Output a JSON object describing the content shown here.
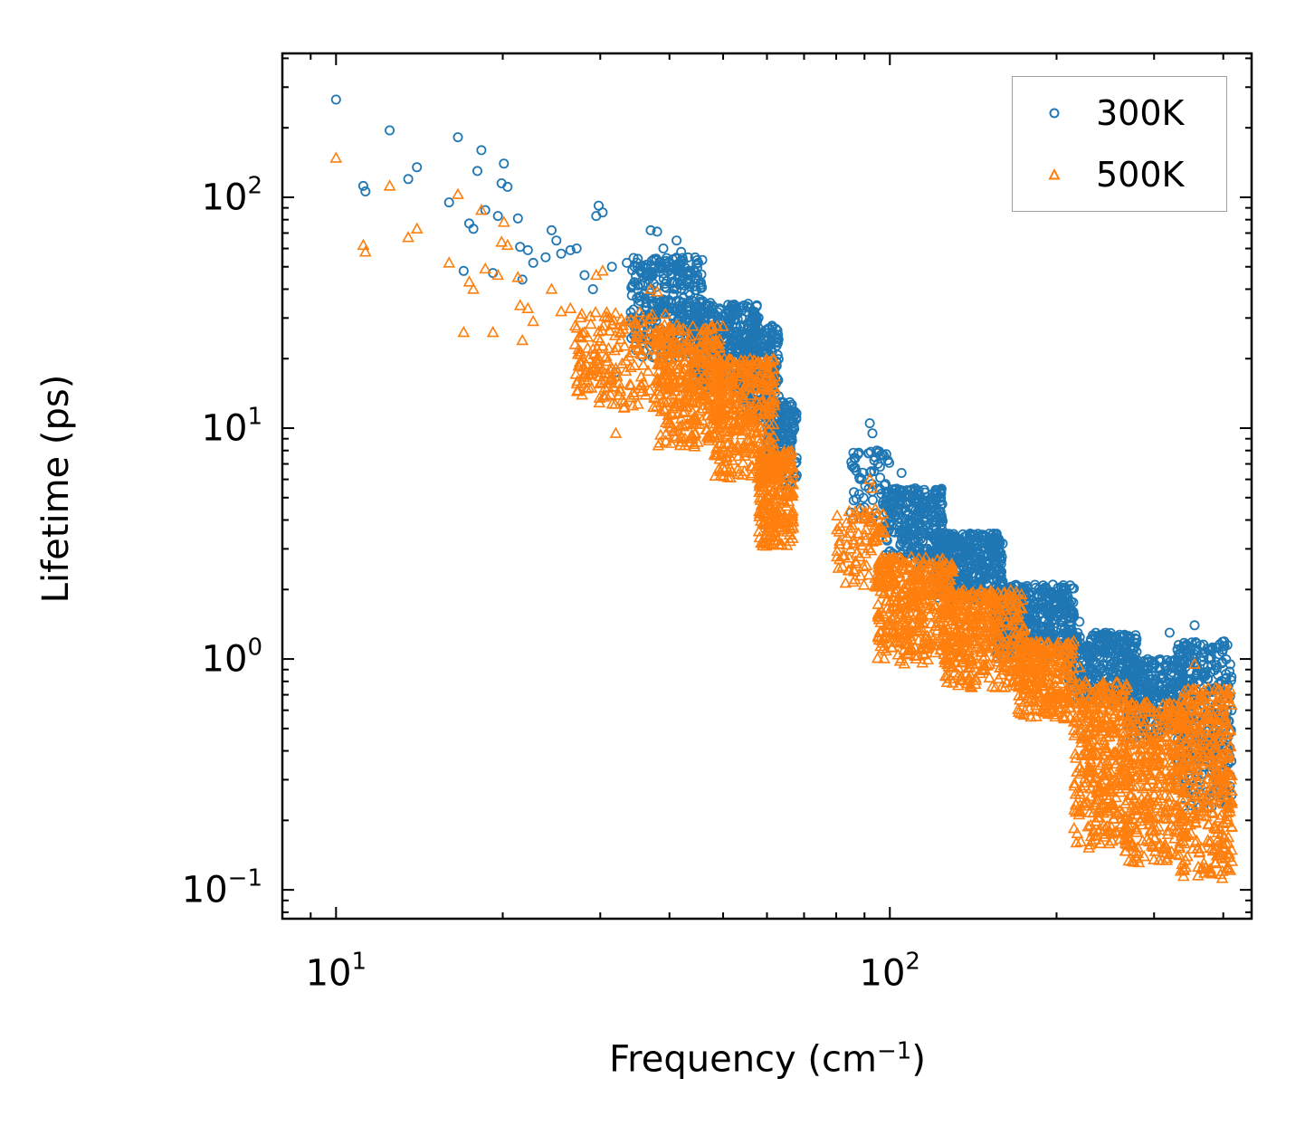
{
  "chart_data": {
    "type": "scatter",
    "title": "",
    "xlabel": "Frequency (cm",
    "xlabel_sup": "−1",
    "xlabel_suffix": ")",
    "ylabel": "Lifetime (ps)",
    "xscale": "log",
    "yscale": "log",
    "xlim": [
      8,
      450
    ],
    "ylim": [
      0.075,
      420
    ],
    "x_ticks": [
      {
        "base": "10",
        "exp": "1",
        "value": 10
      },
      {
        "base": "10",
        "exp": "2",
        "value": 100
      }
    ],
    "y_ticks": [
      {
        "base": "10",
        "exp": "−1",
        "value": 0.1
      },
      {
        "base": "10",
        "exp": "0",
        "value": 1
      },
      {
        "base": "10",
        "exp": "1",
        "value": 10
      },
      {
        "base": "10",
        "exp": "2",
        "value": 100
      }
    ],
    "legend_position": "top-right",
    "series": [
      {
        "name": "300K",
        "marker": "circle",
        "color": "#1f77b4",
        "points": [
          [
            10.0,
            265
          ],
          [
            11.2,
            112
          ],
          [
            11.3,
            106
          ],
          [
            12.5,
            195
          ],
          [
            13.5,
            120
          ],
          [
            14.0,
            135
          ],
          [
            16.0,
            95
          ],
          [
            16.6,
            182
          ],
          [
            17.0,
            48
          ],
          [
            17.4,
            77
          ],
          [
            17.7,
            73
          ],
          [
            18.0,
            130
          ],
          [
            18.3,
            160
          ],
          [
            18.6,
            88
          ],
          [
            19.2,
            47
          ],
          [
            19.6,
            83
          ],
          [
            19.9,
            115
          ],
          [
            20.1,
            140
          ],
          [
            20.4,
            111
          ],
          [
            21.3,
            81
          ],
          [
            21.5,
            61
          ],
          [
            21.7,
            44
          ],
          [
            22.2,
            59
          ],
          [
            22.7,
            52
          ],
          [
            23.9,
            55
          ],
          [
            24.5,
            72
          ],
          [
            25.0,
            65
          ],
          [
            25.5,
            57
          ],
          [
            26.5,
            59
          ],
          [
            27.2,
            60
          ],
          [
            28.1,
            46
          ],
          [
            29.1,
            40
          ],
          [
            29.5,
            83
          ],
          [
            29.8,
            92
          ],
          [
            30.3,
            86
          ],
          [
            31.5,
            50
          ],
          [
            32.0,
            17.5
          ],
          [
            33.5,
            52
          ],
          [
            34.6,
            50
          ],
          [
            36.0,
            45
          ],
          [
            37.0,
            72
          ],
          [
            38.0,
            71
          ],
          [
            39.0,
            60
          ],
          [
            41.2,
            65
          ],
          [
            42.0,
            58
          ],
          [
            92.0,
            10.5
          ],
          [
            93.0,
            9.5
          ],
          [
            95.0,
            7.8
          ],
          [
            96.0,
            6.8
          ],
          [
            105.0,
            6.4
          ],
          [
            110.0,
            5.1
          ],
          [
            220.0,
            1.45
          ],
          [
            260.0,
            1.25
          ],
          [
            320.0,
            1.3
          ],
          [
            355.0,
            1.4
          ],
          [
            380.0,
            1.1
          ]
        ],
        "bands": [
          {
            "x": [
              34,
              46
            ],
            "y_lo": 20,
            "y_hi": 55,
            "n": 320
          },
          {
            "x": [
              44,
              58
            ],
            "y_lo": 15,
            "y_hi": 35,
            "n": 360
          },
          {
            "x": [
              54,
              63
            ],
            "y_lo": 11,
            "y_hi": 28,
            "n": 220
          },
          {
            "x": [
              60,
              68
            ],
            "y_lo": 5.5,
            "y_hi": 13,
            "n": 160
          },
          {
            "x": [
              85,
              100
            ],
            "y_lo": 4.0,
            "y_hi": 8.0,
            "n": 60
          },
          {
            "x": [
              98,
              125
            ],
            "y_lo": 2.5,
            "y_hi": 5.5,
            "n": 300
          },
          {
            "x": [
              120,
              160
            ],
            "y_lo": 1.8,
            "y_hi": 3.5,
            "n": 420
          },
          {
            "x": [
              155,
              215
            ],
            "y_lo": 1.0,
            "y_hi": 2.1,
            "n": 460
          },
          {
            "x": [
              210,
              280
            ],
            "y_lo": 0.65,
            "y_hi": 1.3,
            "n": 340
          },
          {
            "x": [
              270,
              340
            ],
            "y_lo": 0.45,
            "y_hi": 1.0,
            "n": 280
          },
          {
            "x": [
              330,
              415
            ],
            "y_lo": 0.22,
            "y_hi": 1.2,
            "n": 320
          }
        ]
      },
      {
        "name": "500K",
        "marker": "triangle",
        "color": "#ff7f0e",
        "points": [
          [
            10.0,
            148
          ],
          [
            11.2,
            62
          ],
          [
            11.3,
            58
          ],
          [
            12.5,
            112
          ],
          [
            13.5,
            67
          ],
          [
            14.0,
            73
          ],
          [
            16.0,
            52
          ],
          [
            16.6,
            103
          ],
          [
            17.0,
            26
          ],
          [
            17.4,
            43
          ],
          [
            17.7,
            40
          ],
          [
            18.3,
            88
          ],
          [
            18.6,
            49
          ],
          [
            19.2,
            26
          ],
          [
            19.6,
            46
          ],
          [
            19.9,
            64
          ],
          [
            20.1,
            78
          ],
          [
            20.4,
            62
          ],
          [
            21.3,
            45
          ],
          [
            21.5,
            34
          ],
          [
            21.7,
            24
          ],
          [
            22.2,
            33
          ],
          [
            22.7,
            29
          ],
          [
            24.5,
            40
          ],
          [
            25.5,
            32
          ],
          [
            26.5,
            33
          ],
          [
            28.1,
            26
          ],
          [
            29.1,
            22
          ],
          [
            29.5,
            46
          ],
          [
            30.3,
            48
          ],
          [
            31.5,
            28
          ],
          [
            32.0,
            9.5
          ],
          [
            33.5,
            29
          ],
          [
            37.0,
            40
          ],
          [
            38.0,
            39
          ],
          [
            92.0,
            6.0
          ],
          [
            93.0,
            5.5
          ],
          [
            85.0,
            3.0
          ],
          [
            220.0,
            0.92
          ],
          [
            355.0,
            0.95
          ]
        ],
        "bands": [
          {
            "x": [
              27,
              40
            ],
            "y_lo": 12,
            "y_hi": 32,
            "n": 200
          },
          {
            "x": [
              38,
              50
            ],
            "y_lo": 8,
            "y_hi": 28,
            "n": 380
          },
          {
            "x": [
              48,
              62
            ],
            "y_lo": 6,
            "y_hi": 20,
            "n": 360
          },
          {
            "x": [
              58,
              67
            ],
            "y_lo": 3.0,
            "y_hi": 8.0,
            "n": 260
          },
          {
            "x": [
              80,
              98
            ],
            "y_lo": 2.0,
            "y_hi": 4.5,
            "n": 90
          },
          {
            "x": [
              95,
              130
            ],
            "y_lo": 0.95,
            "y_hi": 2.8,
            "n": 420
          },
          {
            "x": [
              125,
              175
            ],
            "y_lo": 0.75,
            "y_hi": 2.0,
            "n": 420
          },
          {
            "x": [
              170,
              215
            ],
            "y_lo": 0.55,
            "y_hi": 1.2,
            "n": 280
          },
          {
            "x": [
              215,
              270
            ],
            "y_lo": 0.15,
            "y_hi": 0.8,
            "n": 380
          },
          {
            "x": [
              265,
              340
            ],
            "y_lo": 0.13,
            "y_hi": 0.65,
            "n": 380
          },
          {
            "x": [
              335,
              415
            ],
            "y_lo": 0.11,
            "y_hi": 0.75,
            "n": 380
          }
        ]
      }
    ]
  }
}
